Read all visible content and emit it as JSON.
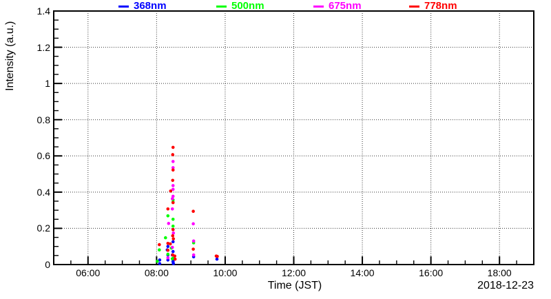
{
  "chart_data": {
    "type": "scatter",
    "title": "",
    "xlabel": "Time (JST)",
    "ylabel": "Intensity (a.u.)",
    "date_annotation": "2018-12-23",
    "x_axis": {
      "unit": "time of day (JST), decimal hours",
      "range": [
        5,
        19
      ],
      "major_tick_hours": [
        6,
        8,
        10,
        12,
        14,
        16,
        18
      ],
      "major_tick_labels": [
        "06:00",
        "08:00",
        "10:00",
        "12:00",
        "14:00",
        "16:00",
        "18:00"
      ],
      "minor_tick_step_hours": 0.5
    },
    "y_axis": {
      "range": [
        0,
        1.4
      ],
      "major_tick_values": [
        0,
        0.2,
        0.4,
        0.6,
        0.8,
        1,
        1.2,
        1.4
      ],
      "major_tick_labels": [
        "0",
        "0.2",
        "0.4",
        "0.6",
        "0.8",
        "1",
        "1.2",
        "1.4"
      ],
      "minor_tick_step": 0.05
    },
    "grid": {
      "on": true,
      "style": "dotted"
    },
    "legend": {
      "position": "top",
      "entries": [
        "368nm",
        "500nm",
        "675nm",
        "778nm"
      ]
    },
    "marker": "filled-circle",
    "series": [
      {
        "name": "368nm",
        "color": "#0000ff",
        "points": [
          [
            8.09,
            0.025
          ],
          [
            8.09,
            0.005
          ],
          [
            8.31,
            0.081
          ],
          [
            8.33,
            0.053
          ],
          [
            8.33,
            0.025
          ],
          [
            8.33,
            0.1
          ],
          [
            8.46,
            0.053
          ],
          [
            8.48,
            0.126
          ],
          [
            8.48,
            0.072
          ],
          [
            8.48,
            0.018
          ],
          [
            8.48,
            0.015
          ],
          [
            8.49,
            0.005
          ],
          [
            9.08,
            0.043
          ],
          [
            9.76,
            0.03
          ]
        ]
      },
      {
        "name": "500nm",
        "color": "#00ff00",
        "points": [
          [
            8.02,
            0.018
          ],
          [
            8.08,
            0.081
          ],
          [
            8.26,
            0.148
          ],
          [
            8.33,
            0.269
          ],
          [
            8.33,
            0.057
          ],
          [
            8.43,
            0.091
          ],
          [
            8.46,
            0.032
          ],
          [
            8.48,
            0.357
          ],
          [
            8.48,
            0.345
          ],
          [
            8.48,
            0.25
          ],
          [
            8.48,
            0.212
          ],
          [
            8.48,
            0.034
          ],
          [
            9.08,
            0.12
          ]
        ]
      },
      {
        "name": "675nm",
        "color": "#ff00ff",
        "points": [
          [
            8.33,
            0.037
          ],
          [
            8.35,
            0.227
          ],
          [
            8.46,
            0.364
          ],
          [
            8.46,
            0.307
          ],
          [
            8.46,
            0.095
          ],
          [
            8.48,
            0.569
          ],
          [
            8.48,
            0.535
          ],
          [
            8.48,
            0.436
          ],
          [
            8.48,
            0.415
          ],
          [
            8.48,
            0.377
          ],
          [
            8.48,
            0.193
          ],
          [
            8.49,
            0.174
          ],
          [
            9.07,
            0.225
          ],
          [
            9.08,
            0.13
          ],
          [
            9.08,
            0.053
          ]
        ]
      },
      {
        "name": "778nm",
        "color": "#ff0000",
        "points": [
          [
            8.08,
            0.11
          ],
          [
            8.33,
            0.307
          ],
          [
            8.33,
            0.117
          ],
          [
            8.33,
            0.079
          ],
          [
            8.4,
            0.114
          ],
          [
            8.41,
            0.406
          ],
          [
            8.47,
            0.607
          ],
          [
            8.47,
            0.465
          ],
          [
            8.47,
            0.159
          ],
          [
            8.47,
            0.053
          ],
          [
            8.48,
            0.647
          ],
          [
            8.48,
            0.522
          ],
          [
            8.48,
            0.342
          ],
          [
            8.48,
            0.193
          ],
          [
            8.49,
            0.142
          ],
          [
            8.53,
            0.047
          ],
          [
            8.54,
            0.03
          ],
          [
            9.07,
            0.294
          ],
          [
            9.07,
            0.085
          ],
          [
            9.74,
            0.047
          ],
          [
            9.77,
            0.045
          ]
        ]
      }
    ]
  }
}
